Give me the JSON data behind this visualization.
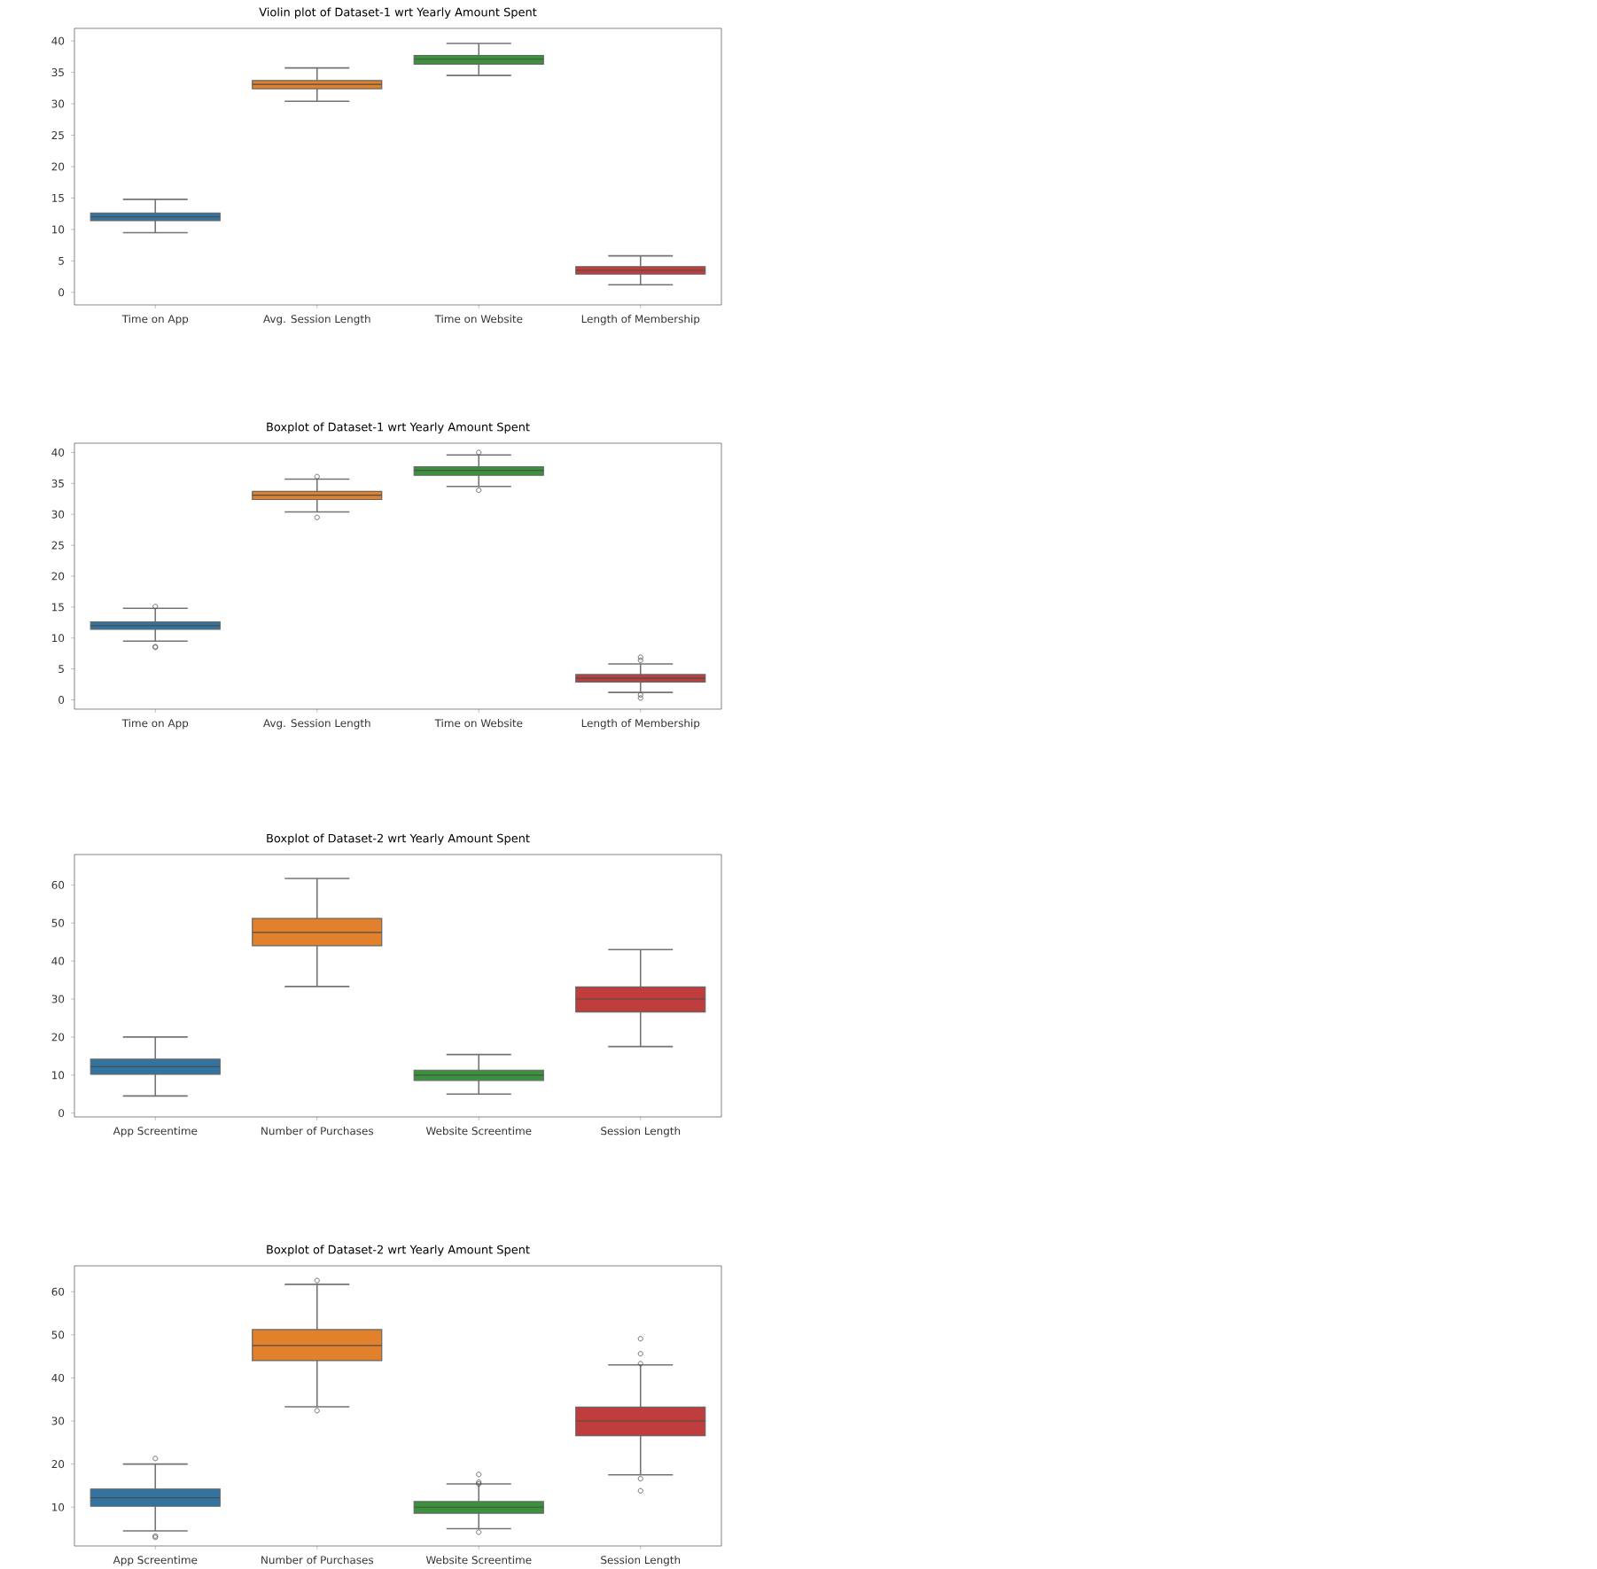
{
  "chart_data": [
    {
      "type": "box",
      "title": "Violin plot of Dataset-1 wrt Yearly Amount Spent",
      "categories": [
        "Time on App",
        "Avg. Session Length",
        "Time on Website",
        "Length of Membership"
      ],
      "colors": [
        "#3274a1",
        "#e1812c",
        "#3a923a",
        "#c03d3e"
      ],
      "ylim": [
        -2,
        42
      ],
      "yticks": [
        0,
        5,
        10,
        15,
        20,
        25,
        30,
        35,
        40
      ],
      "boxes": [
        {
          "low": 9.5,
          "q1": 11.4,
          "median": 12,
          "q3": 12.6,
          "high": 14.8
        },
        {
          "low": 30.4,
          "q1": 32.4,
          "median": 33.1,
          "q3": 33.7,
          "high": 35.7
        },
        {
          "low": 34.5,
          "q1": 36.3,
          "median": 37.1,
          "q3": 37.7,
          "high": 39.6
        },
        {
          "low": 1.2,
          "q1": 2.9,
          "median": 3.5,
          "q3": 4.1,
          "high": 5.8
        }
      ]
    },
    {
      "type": "box",
      "title": "Boxplot of Dataset-1 wrt Yearly Amount Spent",
      "categories": [
        "Time on App",
        "Avg. Session Length",
        "Time on Website",
        "Length of Membership"
      ],
      "colors": [
        "#3274a1",
        "#e1812c",
        "#3a923a",
        "#c03d3e"
      ],
      "ylim": [
        -1.5,
        41.5
      ],
      "yticks": [
        0,
        5,
        10,
        15,
        20,
        25,
        30,
        35,
        40
      ],
      "boxes": [
        {
          "low": 9.5,
          "q1": 11.4,
          "median": 12,
          "q3": 12.6,
          "high": 14.8,
          "outliers": [
            15.1,
            8.6,
            8.5
          ]
        },
        {
          "low": 30.4,
          "q1": 32.4,
          "median": 33.1,
          "q3": 33.7,
          "high": 35.7,
          "outliers": [
            36.1,
            29.5
          ]
        },
        {
          "low": 34.5,
          "q1": 36.3,
          "median": 37.1,
          "q3": 37.7,
          "high": 39.6,
          "outliers": [
            40.0,
            33.9
          ]
        },
        {
          "low": 1.2,
          "q1": 2.9,
          "median": 3.5,
          "q3": 4.1,
          "high": 5.8,
          "outliers": [
            6.4,
            6.9,
            0.8,
            0.3
          ]
        }
      ]
    },
    {
      "type": "box",
      "title": "Boxplot of Dataset-2 wrt Yearly Amount Spent",
      "categories": [
        "App Screentime",
        "Number of Purchases",
        "Website Screentime",
        "Session Length"
      ],
      "colors": [
        "#3274a1",
        "#e1812c",
        "#3a923a",
        "#c03d3e"
      ],
      "ylim": [
        -1,
        68
      ],
      "yticks": [
        0,
        10,
        20,
        30,
        40,
        50,
        60
      ],
      "boxes": [
        {
          "low": 4.5,
          "q1": 10.2,
          "median": 12.2,
          "q3": 14.2,
          "high": 20
        },
        {
          "low": 33.3,
          "q1": 44,
          "median": 47.5,
          "q3": 51.2,
          "high": 61.7
        },
        {
          "low": 5,
          "q1": 8.6,
          "median": 10,
          "q3": 11.3,
          "high": 15.4
        },
        {
          "low": 17.5,
          "q1": 26.6,
          "median": 30,
          "q3": 33.2,
          "high": 43
        }
      ]
    },
    {
      "type": "box",
      "title": "Boxplot of Dataset-2 wrt Yearly Amount Spent",
      "categories": [
        "App Screentime",
        "Number of Purchases",
        "Website Screentime",
        "Session Length"
      ],
      "colors": [
        "#3274a1",
        "#e1812c",
        "#3a923a",
        "#c03d3e"
      ],
      "ylim": [
        1,
        66
      ],
      "yticks": [
        10,
        20,
        30,
        40,
        50,
        60
      ],
      "boxes": [
        {
          "low": 4.5,
          "q1": 10.2,
          "median": 12.2,
          "q3": 14.2,
          "high": 20,
          "outliers": [
            21.3,
            3.3,
            3.0
          ]
        },
        {
          "low": 33.3,
          "q1": 44,
          "median": 47.5,
          "q3": 51.2,
          "high": 61.7,
          "outliers": [
            62.6,
            32.4
          ]
        },
        {
          "low": 5,
          "q1": 8.6,
          "median": 10,
          "q3": 11.3,
          "high": 15.4,
          "outliers": [
            17.6,
            15.8,
            15.4,
            4.2
          ]
        },
        {
          "low": 17.5,
          "q1": 26.6,
          "median": 30,
          "q3": 33.2,
          "high": 43,
          "outliers": [
            49.1,
            45.6,
            43.3,
            16.6,
            13.8
          ]
        }
      ]
    }
  ]
}
